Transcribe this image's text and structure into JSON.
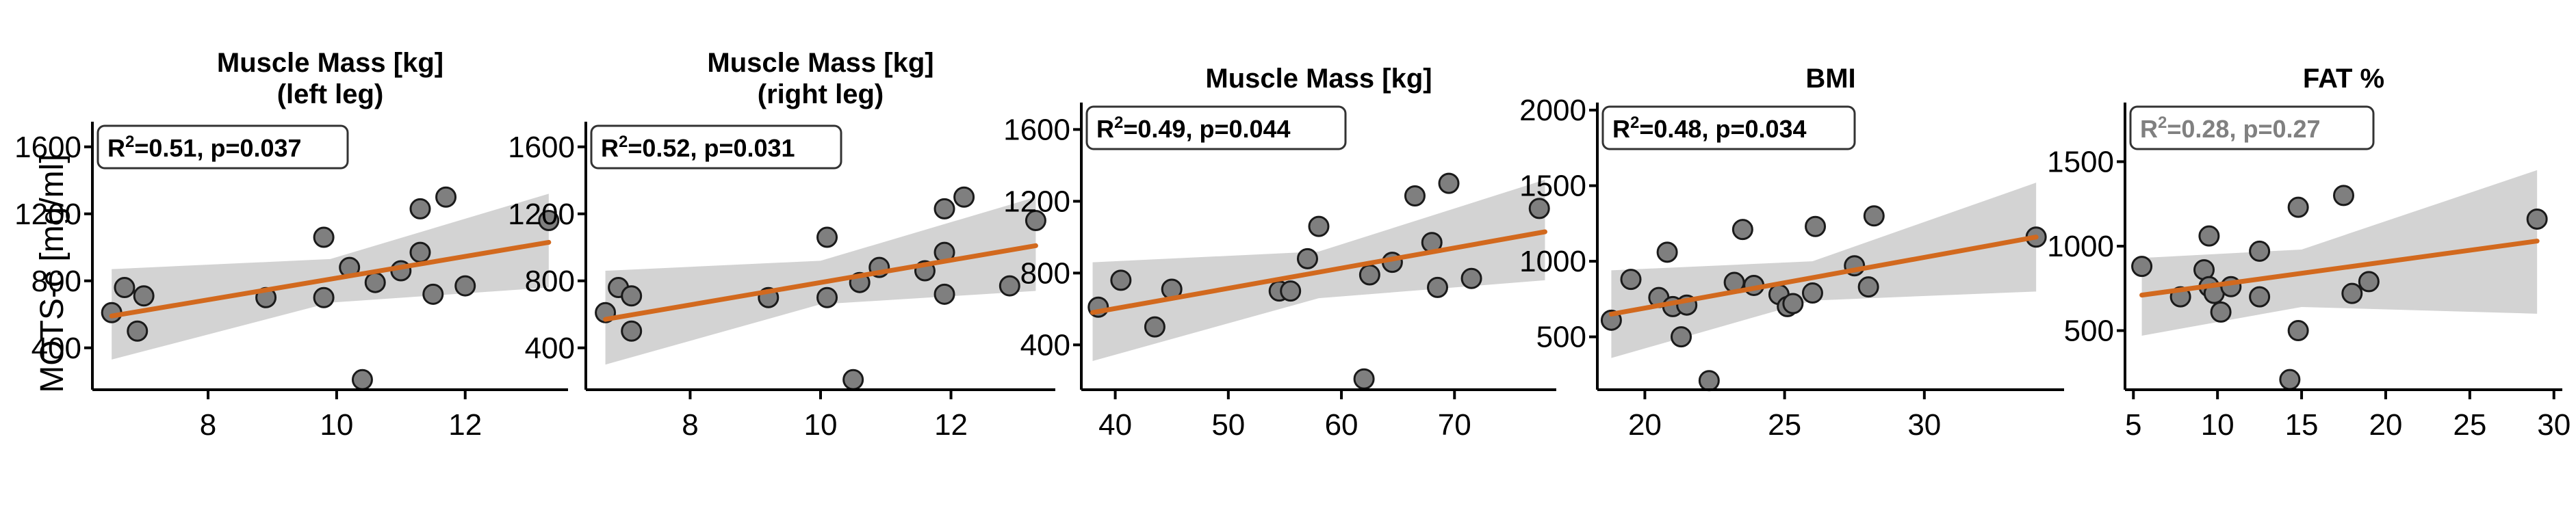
{
  "ylabel": "MOTS-c [mg/ml]",
  "colors": {
    "regression": "#d2691e",
    "ci_band": "#d3d3d3",
    "point_fill": "#7f7f7f",
    "point_edge": "#1a1a1a",
    "stat_dim": "#808080",
    "stat_strong": "#000000"
  },
  "chart_data": [
    {
      "type": "scatter",
      "title_lines": [
        "Muscle Mass [kg]",
        "(left leg)"
      ],
      "xlim": [
        6.2,
        13.6
      ],
      "ylim": [
        150,
        1750
      ],
      "xticks": [
        8,
        10,
        12
      ],
      "yticks": [
        400,
        800,
        1200,
        1600
      ],
      "stats": {
        "r2_value": "=0.51, p=0.037",
        "significant": true
      },
      "fit": {
        "x": [
          6.5,
          13.3
        ],
        "y": [
          590,
          1030
        ]
      },
      "ci_upper": [
        [
          6.5,
          870
        ],
        [
          9.9,
          930
        ],
        [
          13.3,
          1320
        ]
      ],
      "ci_lower": [
        [
          6.5,
          330
        ],
        [
          9.9,
          670
        ],
        [
          13.3,
          760
        ]
      ],
      "points": [
        {
          "x": 6.5,
          "y": 610
        },
        {
          "x": 6.7,
          "y": 760
        },
        {
          "x": 6.9,
          "y": 500
        },
        {
          "x": 7.0,
          "y": 710
        },
        {
          "x": 8.9,
          "y": 700
        },
        {
          "x": 9.8,
          "y": 1060
        },
        {
          "x": 9.8,
          "y": 700
        },
        {
          "x": 10.2,
          "y": 880
        },
        {
          "x": 10.4,
          "y": 210
        },
        {
          "x": 10.6,
          "y": 790
        },
        {
          "x": 11.0,
          "y": 860
        },
        {
          "x": 11.3,
          "y": 1230
        },
        {
          "x": 11.3,
          "y": 970
        },
        {
          "x": 11.5,
          "y": 720
        },
        {
          "x": 11.7,
          "y": 1300
        },
        {
          "x": 12.0,
          "y": 770
        },
        {
          "x": 13.3,
          "y": 1160
        }
      ]
    },
    {
      "type": "scatter",
      "title_lines": [
        "Muscle Mass [kg]",
        "(right leg)"
      ],
      "xlim": [
        6.4,
        13.6
      ],
      "ylim": [
        150,
        1750
      ],
      "xticks": [
        8,
        10,
        12
      ],
      "yticks": [
        400,
        800,
        1200,
        1600
      ],
      "stats": {
        "r2_value": "=0.52, p=0.031",
        "significant": true
      },
      "fit": {
        "x": [
          6.7,
          13.3
        ],
        "y": [
          570,
          1010
        ]
      },
      "ci_upper": [
        [
          6.7,
          860
        ],
        [
          10.0,
          920
        ],
        [
          13.3,
          1300
        ]
      ],
      "ci_lower": [
        [
          6.7,
          300
        ],
        [
          10.0,
          660
        ],
        [
          13.3,
          740
        ]
      ],
      "points": [
        {
          "x": 6.7,
          "y": 610
        },
        {
          "x": 6.9,
          "y": 760
        },
        {
          "x": 7.1,
          "y": 500
        },
        {
          "x": 7.1,
          "y": 710
        },
        {
          "x": 9.2,
          "y": 700
        },
        {
          "x": 10.1,
          "y": 1060
        },
        {
          "x": 10.1,
          "y": 700
        },
        {
          "x": 10.6,
          "y": 790
        },
        {
          "x": 10.5,
          "y": 210
        },
        {
          "x": 10.9,
          "y": 880
        },
        {
          "x": 11.6,
          "y": 860
        },
        {
          "x": 11.9,
          "y": 1230
        },
        {
          "x": 11.9,
          "y": 970
        },
        {
          "x": 11.9,
          "y": 720
        },
        {
          "x": 12.2,
          "y": 1300
        },
        {
          "x": 12.9,
          "y": 770
        },
        {
          "x": 13.3,
          "y": 1160
        }
      ]
    },
    {
      "type": "scatter",
      "title_lines": [
        "Muscle Mass [kg]"
      ],
      "xlim": [
        37,
        79
      ],
      "ylim": [
        150,
        1750
      ],
      "xticks": [
        40,
        50,
        60,
        70
      ],
      "yticks": [
        400,
        800,
        1200,
        1600
      ],
      "stats": {
        "r2_value": "=0.49, p=0.044",
        "significant": true
      },
      "fit": {
        "x": [
          38,
          78
        ],
        "y": [
          580,
          1030
        ]
      },
      "ci_upper": [
        [
          38,
          860
        ],
        [
          58,
          920
        ],
        [
          78,
          1320
        ]
      ],
      "ci_lower": [
        [
          38,
          310
        ],
        [
          58,
          660
        ],
        [
          78,
          760
        ]
      ],
      "points": [
        {
          "x": 38.5,
          "y": 610
        },
        {
          "x": 40.5,
          "y": 760
        },
        {
          "x": 43.5,
          "y": 500
        },
        {
          "x": 45.0,
          "y": 710
        },
        {
          "x": 54.5,
          "y": 700
        },
        {
          "x": 55.5,
          "y": 700
        },
        {
          "x": 57.0,
          "y": 880
        },
        {
          "x": 58.0,
          "y": 1060
        },
        {
          "x": 62.0,
          "y": 210
        },
        {
          "x": 62.5,
          "y": 790
        },
        {
          "x": 64.5,
          "y": 860
        },
        {
          "x": 66.5,
          "y": 1230
        },
        {
          "x": 68.0,
          "y": 970
        },
        {
          "x": 68.5,
          "y": 720
        },
        {
          "x": 69.5,
          "y": 1300
        },
        {
          "x": 71.5,
          "y": 770
        },
        {
          "x": 77.5,
          "y": 1160
        }
      ]
    },
    {
      "type": "scatter",
      "title_lines": [
        "BMI"
      ],
      "xlim": [
        18.3,
        35
      ],
      "ylim": [
        150,
        2050
      ],
      "xticks": [
        20,
        25,
        30
      ],
      "yticks": [
        500,
        1000,
        1500,
        2000
      ],
      "stats": {
        "r2_value": "=0.48, p=0.034",
        "significant": true
      },
      "fit": {
        "x": [
          18.8,
          34.0
        ],
        "y": [
          650,
          1160
        ]
      },
      "ci_upper": [
        [
          18.8,
          940
        ],
        [
          26.0,
          1000
        ],
        [
          34.0,
          1520
        ]
      ],
      "ci_lower": [
        [
          18.8,
          360
        ],
        [
          26.0,
          740
        ],
        [
          34.0,
          800
        ]
      ],
      "points": [
        {
          "x": 18.8,
          "y": 610
        },
        {
          "x": 19.5,
          "y": 880
        },
        {
          "x": 20.5,
          "y": 760
        },
        {
          "x": 20.8,
          "y": 1060
        },
        {
          "x": 21.0,
          "y": 700
        },
        {
          "x": 21.3,
          "y": 500
        },
        {
          "x": 21.5,
          "y": 710
        },
        {
          "x": 22.3,
          "y": 210
        },
        {
          "x": 23.2,
          "y": 860
        },
        {
          "x": 23.5,
          "y": 1210
        },
        {
          "x": 23.9,
          "y": 840
        },
        {
          "x": 24.8,
          "y": 780
        },
        {
          "x": 25.1,
          "y": 700
        },
        {
          "x": 25.3,
          "y": 720
        },
        {
          "x": 26.0,
          "y": 790
        },
        {
          "x": 26.1,
          "y": 1230
        },
        {
          "x": 27.5,
          "y": 970
        },
        {
          "x": 28.0,
          "y": 830
        },
        {
          "x": 28.2,
          "y": 1300
        },
        {
          "x": 34.0,
          "y": 1160
        }
      ]
    },
    {
      "type": "scatter",
      "title_lines": [
        "FAT %"
      ],
      "xlim": [
        4.5,
        30.5
      ],
      "ylim": [
        150,
        1850
      ],
      "xticks": [
        5,
        10,
        15,
        20,
        25,
        30
      ],
      "yticks": [
        500,
        1000,
        1500
      ],
      "stats": {
        "r2_value": "=0.28, p=0.27",
        "significant": false
      },
      "fit": {
        "x": [
          5.5,
          29.0
        ],
        "y": [
          710,
          1030
        ]
      },
      "ci_upper": [
        [
          5.5,
          930
        ],
        [
          15.0,
          980
        ],
        [
          29.0,
          1450
        ]
      ],
      "ci_lower": [
        [
          5.5,
          470
        ],
        [
          15.0,
          640
        ],
        [
          29.0,
          600
        ]
      ],
      "points": [
        {
          "x": 5.5,
          "y": 880
        },
        {
          "x": 7.8,
          "y": 700
        },
        {
          "x": 9.2,
          "y": 860
        },
        {
          "x": 9.5,
          "y": 1060
        },
        {
          "x": 9.5,
          "y": 760
        },
        {
          "x": 9.8,
          "y": 720
        },
        {
          "x": 10.2,
          "y": 610
        },
        {
          "x": 10.8,
          "y": 760
        },
        {
          "x": 12.5,
          "y": 970
        },
        {
          "x": 12.5,
          "y": 700
        },
        {
          "x": 14.3,
          "y": 210
        },
        {
          "x": 14.8,
          "y": 1230
        },
        {
          "x": 14.8,
          "y": 500
        },
        {
          "x": 17.5,
          "y": 1300
        },
        {
          "x": 18.0,
          "y": 720
        },
        {
          "x": 19.0,
          "y": 790
        },
        {
          "x": 29.0,
          "y": 1160
        }
      ]
    }
  ]
}
